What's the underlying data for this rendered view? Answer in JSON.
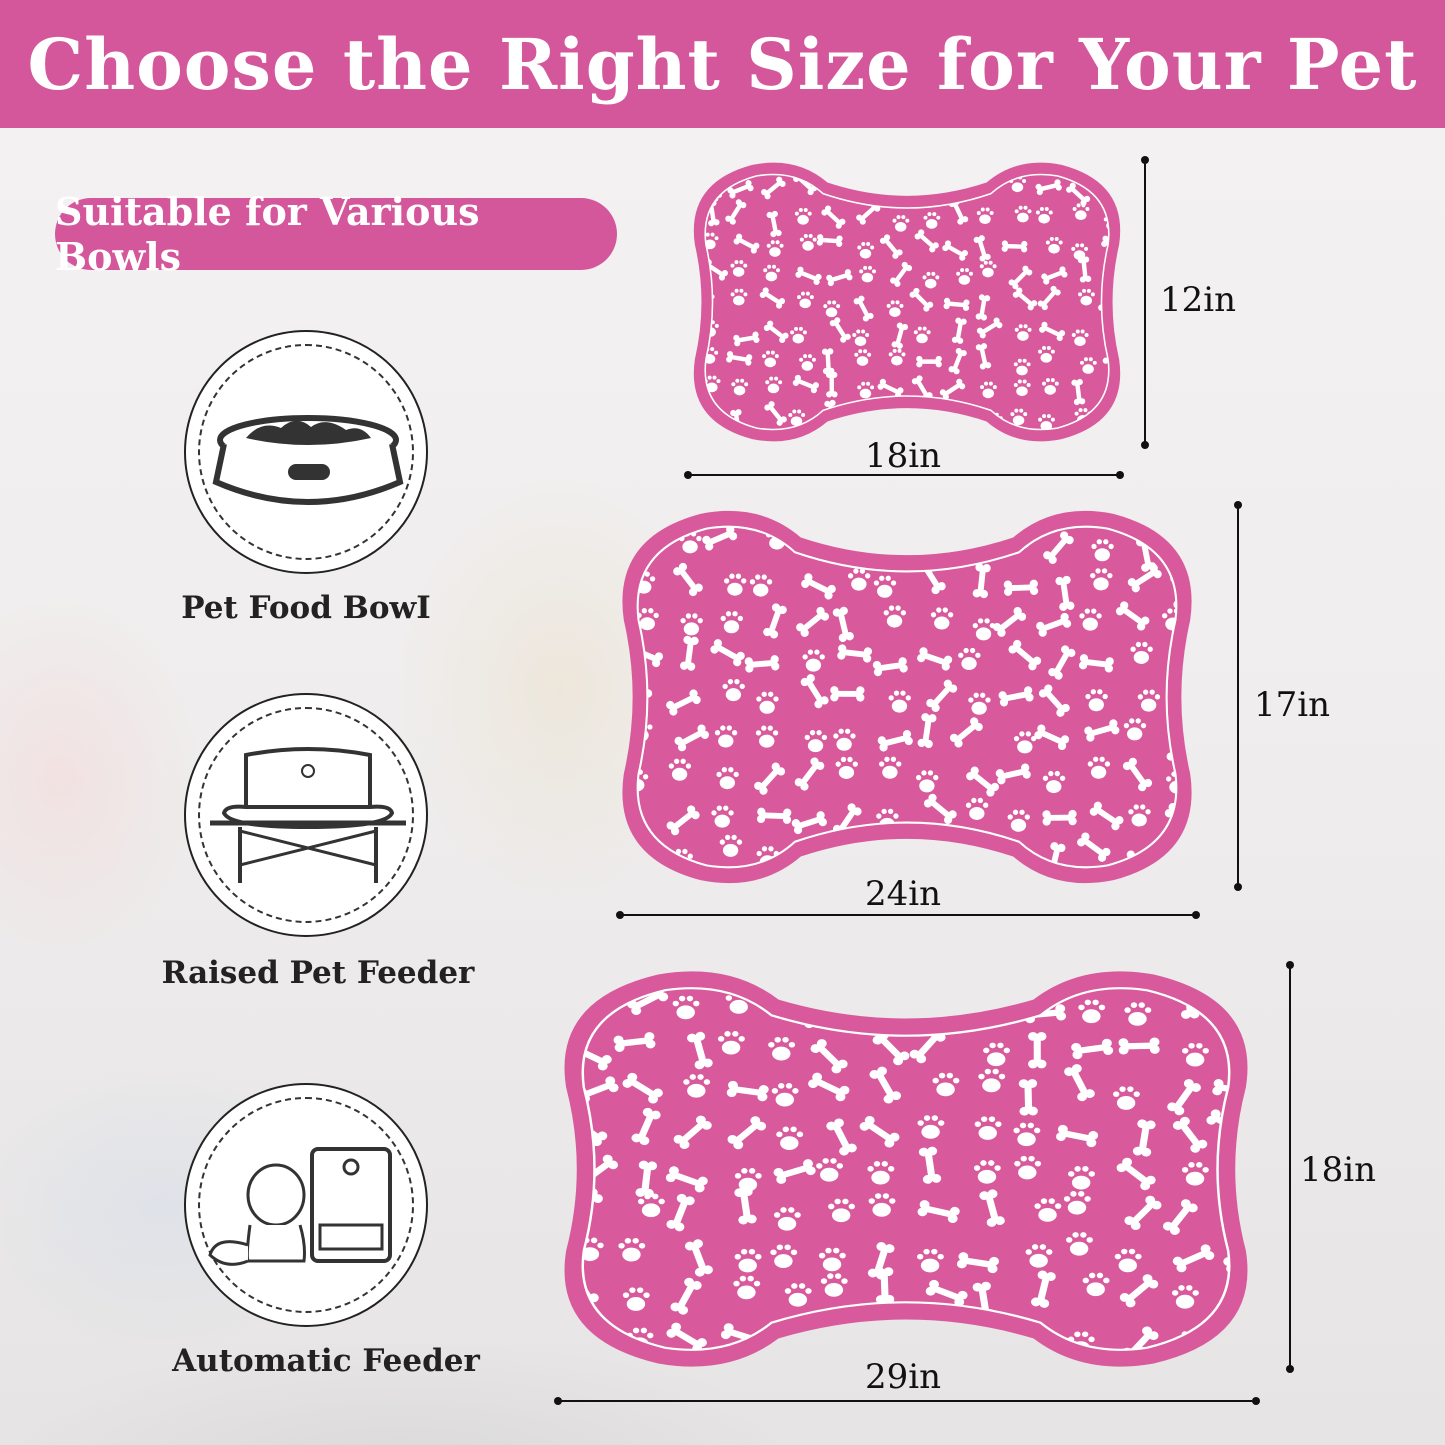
{
  "header": {
    "title": "Choose the Right Size for Your Pet"
  },
  "badge": {
    "label": "Suitable for Various Bowls"
  },
  "bowl_types": [
    {
      "label": "Pet Food BowI",
      "icon": "pet-food-bowl-icon"
    },
    {
      "label": "Raised Pet Feeder",
      "icon": "raised-feeder-icon"
    },
    {
      "label": "Automatic Feeder",
      "icon": "automatic-feeder-icon"
    }
  ],
  "sizes": [
    {
      "width": "18in",
      "height": "12in"
    },
    {
      "width": "24in",
      "height": "17in"
    },
    {
      "width": "29in",
      "height": "18in"
    }
  ],
  "colors": {
    "accent": "#d4579b",
    "mat": "#d85a9c",
    "pattern": "#ffffff"
  }
}
